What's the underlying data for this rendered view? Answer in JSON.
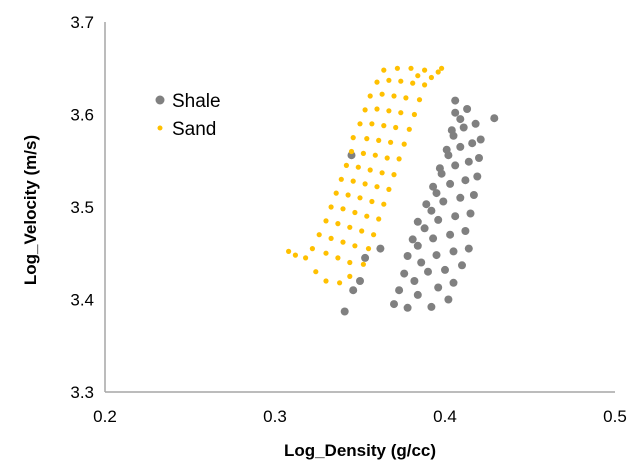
{
  "chart_data": {
    "type": "scatter",
    "title": "",
    "xlabel": "Log_Density (g/cc)",
    "ylabel": "Log_Velocity (m/s)",
    "xlim": [
      0.2,
      0.5
    ],
    "ylim": [
      3.3,
      3.7
    ],
    "xticks": [
      "0.2",
      "0.3",
      "0.4",
      "0.5"
    ],
    "yticks": [
      "3.3",
      "3.4",
      "3.5",
      "3.6",
      "3.7"
    ],
    "grid": false,
    "legend": "top-left",
    "series": [
      {
        "name": "Shale",
        "color": "#808080",
        "marker": "circle",
        "points": [
          [
            0.341,
            3.387
          ],
          [
            0.37,
            3.395
          ],
          [
            0.378,
            3.391
          ],
          [
            0.392,
            3.392
          ],
          [
            0.402,
            3.4
          ],
          [
            0.373,
            3.41
          ],
          [
            0.384,
            3.405
          ],
          [
            0.396,
            3.413
          ],
          [
            0.405,
            3.418
          ],
          [
            0.382,
            3.42
          ],
          [
            0.376,
            3.428
          ],
          [
            0.39,
            3.43
          ],
          [
            0.4,
            3.432
          ],
          [
            0.41,
            3.437
          ],
          [
            0.386,
            3.44
          ],
          [
            0.378,
            3.447
          ],
          [
            0.395,
            3.448
          ],
          [
            0.405,
            3.452
          ],
          [
            0.414,
            3.455
          ],
          [
            0.384,
            3.458
          ],
          [
            0.381,
            3.465
          ],
          [
            0.393,
            3.466
          ],
          [
            0.403,
            3.47
          ],
          [
            0.412,
            3.474
          ],
          [
            0.388,
            3.477
          ],
          [
            0.384,
            3.484
          ],
          [
            0.396,
            3.486
          ],
          [
            0.406,
            3.49
          ],
          [
            0.415,
            3.493
          ],
          [
            0.392,
            3.496
          ],
          [
            0.389,
            3.503
          ],
          [
            0.399,
            3.506
          ],
          [
            0.409,
            3.51
          ],
          [
            0.417,
            3.513
          ],
          [
            0.395,
            3.515
          ],
          [
            0.393,
            3.522
          ],
          [
            0.403,
            3.525
          ],
          [
            0.412,
            3.529
          ],
          [
            0.419,
            3.533
          ],
          [
            0.398,
            3.536
          ],
          [
            0.397,
            3.542
          ],
          [
            0.406,
            3.545
          ],
          [
            0.414,
            3.549
          ],
          [
            0.42,
            3.553
          ],
          [
            0.402,
            3.556
          ],
          [
            0.401,
            3.562
          ],
          [
            0.409,
            3.565
          ],
          [
            0.416,
            3.569
          ],
          [
            0.421,
            3.573
          ],
          [
            0.405,
            3.577
          ],
          [
            0.404,
            3.583
          ],
          [
            0.411,
            3.586
          ],
          [
            0.418,
            3.59
          ],
          [
            0.409,
            3.595
          ],
          [
            0.406,
            3.602
          ],
          [
            0.413,
            3.606
          ],
          [
            0.406,
            3.615
          ],
          [
            0.429,
            3.596
          ],
          [
            0.353,
            3.445
          ],
          [
            0.346,
            3.41
          ],
          [
            0.362,
            3.455
          ],
          [
            0.35,
            3.42
          ],
          [
            0.345,
            3.556
          ]
        ]
      },
      {
        "name": "Sand",
        "color": "#FFC000",
        "marker": "circle",
        "points": [
          [
            0.318,
            3.445
          ],
          [
            0.324,
            3.43
          ],
          [
            0.33,
            3.42
          ],
          [
            0.338,
            3.418
          ],
          [
            0.344,
            3.425
          ],
          [
            0.322,
            3.455
          ],
          [
            0.33,
            3.45
          ],
          [
            0.337,
            3.445
          ],
          [
            0.344,
            3.44
          ],
          [
            0.352,
            3.438
          ],
          [
            0.326,
            3.47
          ],
          [
            0.333,
            3.466
          ],
          [
            0.34,
            3.462
          ],
          [
            0.347,
            3.458
          ],
          [
            0.355,
            3.455
          ],
          [
            0.33,
            3.485
          ],
          [
            0.337,
            3.482
          ],
          [
            0.344,
            3.478
          ],
          [
            0.351,
            3.474
          ],
          [
            0.358,
            3.47
          ],
          [
            0.333,
            3.5
          ],
          [
            0.34,
            3.498
          ],
          [
            0.347,
            3.494
          ],
          [
            0.354,
            3.49
          ],
          [
            0.361,
            3.487
          ],
          [
            0.336,
            3.515
          ],
          [
            0.343,
            3.513
          ],
          [
            0.35,
            3.51
          ],
          [
            0.357,
            3.506
          ],
          [
            0.364,
            3.503
          ],
          [
            0.339,
            3.53
          ],
          [
            0.346,
            3.528
          ],
          [
            0.353,
            3.525
          ],
          [
            0.36,
            3.522
          ],
          [
            0.367,
            3.519
          ],
          [
            0.342,
            3.545
          ],
          [
            0.349,
            3.543
          ],
          [
            0.356,
            3.54
          ],
          [
            0.363,
            3.537
          ],
          [
            0.37,
            3.535
          ],
          [
            0.345,
            3.56
          ],
          [
            0.352,
            3.558
          ],
          [
            0.359,
            3.556
          ],
          [
            0.366,
            3.553
          ],
          [
            0.373,
            3.552
          ],
          [
            0.346,
            3.575
          ],
          [
            0.354,
            3.574
          ],
          [
            0.361,
            3.572
          ],
          [
            0.368,
            3.57
          ],
          [
            0.376,
            3.568
          ],
          [
            0.35,
            3.59
          ],
          [
            0.357,
            3.59
          ],
          [
            0.364,
            3.588
          ],
          [
            0.371,
            3.586
          ],
          [
            0.379,
            3.584
          ],
          [
            0.353,
            3.605
          ],
          [
            0.36,
            3.606
          ],
          [
            0.367,
            3.604
          ],
          [
            0.374,
            3.602
          ],
          [
            0.382,
            3.6
          ],
          [
            0.356,
            3.62
          ],
          [
            0.363,
            3.622
          ],
          [
            0.37,
            3.62
          ],
          [
            0.377,
            3.618
          ],
          [
            0.385,
            3.616
          ],
          [
            0.36,
            3.635
          ],
          [
            0.367,
            3.637
          ],
          [
            0.374,
            3.636
          ],
          [
            0.381,
            3.634
          ],
          [
            0.388,
            3.632
          ],
          [
            0.364,
            3.648
          ],
          [
            0.372,
            3.65
          ],
          [
            0.38,
            3.65
          ],
          [
            0.388,
            3.648
          ],
          [
            0.396,
            3.646
          ],
          [
            0.398,
            3.65
          ],
          [
            0.392,
            3.64
          ],
          [
            0.384,
            3.642
          ],
          [
            0.312,
            3.448
          ],
          [
            0.308,
            3.452
          ]
        ]
      }
    ]
  }
}
